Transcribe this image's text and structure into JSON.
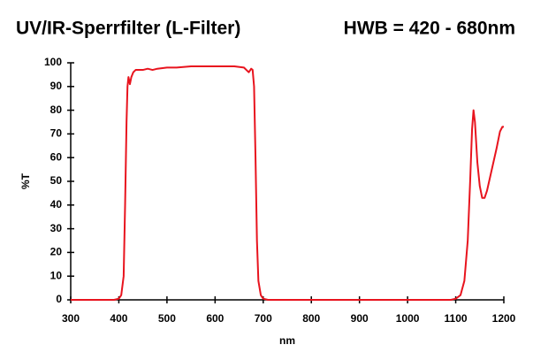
{
  "chart_data": {
    "type": "line",
    "title": "UV/IR-Sperrfilter (L-Filter)",
    "subtitle": "HWB = 420 - 680nm",
    "xlabel": "nm",
    "ylabel": "%T",
    "xlim": [
      300,
      1200
    ],
    "ylim": [
      0,
      100
    ],
    "xticks": [
      300,
      400,
      500,
      600,
      700,
      800,
      900,
      1000,
      1100,
      1200
    ],
    "yticks": [
      0,
      10,
      20,
      30,
      40,
      50,
      60,
      70,
      80,
      90,
      100
    ],
    "grid": false,
    "series": [
      {
        "name": "T",
        "color": "#e8141e",
        "x": [
          300,
          350,
          390,
          400,
          405,
          410,
          413,
          416,
          418,
          420,
          423,
          426,
          430,
          435,
          450,
          460,
          470,
          480,
          500,
          520,
          550,
          600,
          640,
          660,
          665,
          670,
          675,
          678,
          681,
          684,
          687,
          690,
          695,
          700,
          710,
          800,
          900,
          1000,
          1090,
          1100,
          1110,
          1118,
          1125,
          1130,
          1134,
          1137,
          1140,
          1145,
          1150,
          1155,
          1160,
          1165,
          1175,
          1185,
          1192,
          1197,
          1200
        ],
        "values": [
          0,
          0,
          0,
          0.5,
          2,
          10,
          40,
          75,
          90,
          94,
          91,
          94,
          96,
          97,
          97,
          97.5,
          97,
          97.5,
          98,
          98,
          98.5,
          98.5,
          98.5,
          98,
          97,
          96,
          97.5,
          97,
          90,
          60,
          25,
          8,
          2,
          0.5,
          0,
          0,
          0,
          0,
          0,
          0.5,
          2,
          8,
          25,
          50,
          72,
          80,
          75,
          58,
          48,
          43,
          43,
          46,
          55,
          64,
          71,
          73,
          73
        ]
      }
    ]
  }
}
